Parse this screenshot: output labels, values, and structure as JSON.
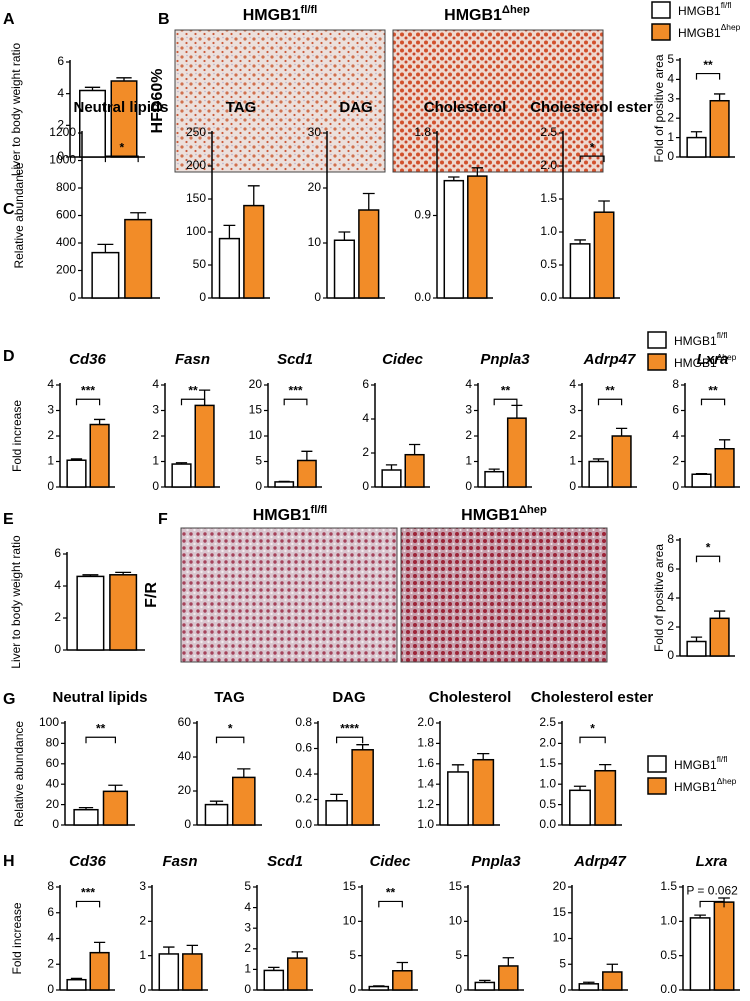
{
  "panel_labels": [
    "A",
    "B",
    "C",
    "D",
    "E",
    "F",
    "G",
    "H"
  ],
  "image_panels": [
    {
      "row_label": "HFD60%",
      "titles": [
        {
          "name": "HMGB1",
          "sup": "fl/fl"
        },
        {
          "name": "HMGB1",
          "sup": "Δhep"
        }
      ]
    },
    {
      "row_label": "F/R",
      "titles": [
        {
          "name": "HMGB1",
          "sup": "fl/fl"
        },
        {
          "name": "HMGB1",
          "sup": "Δhep"
        }
      ]
    }
  ],
  "legend": [
    {
      "name": "HMGB1",
      "sup": "fl/fl",
      "color": "#ffffff"
    },
    {
      "name": "HMGB1",
      "sup": "Δhep",
      "color": "#f28c28"
    }
  ],
  "chart_data": [
    {
      "type": "bar",
      "ylabel": "Liver to body weight ratio",
      "values": [
        4.2,
        4.8
      ],
      "errors": [
        0.2,
        0.2
      ],
      "ylim": [
        0,
        6
      ],
      "yticks": [
        0,
        2,
        4,
        6
      ]
    },
    {
      "type": "bar",
      "ylabel": "Fold of positive area",
      "values": [
        1.0,
        2.9
      ],
      "errors": [
        0.3,
        0.35
      ],
      "ylim": [
        0,
        5
      ],
      "yticks": [
        0,
        1,
        2,
        3,
        4,
        5
      ],
      "sig": "**"
    },
    {
      "type": "bar",
      "title": "Neutral lipids",
      "ylabel": "Relative abundance",
      "values": [
        330,
        570
      ],
      "errors": [
        60,
        50
      ],
      "ylim": [
        0,
        1200
      ],
      "yticks": [
        0,
        200,
        400,
        600,
        800,
        1000,
        1200
      ],
      "sig": "*"
    },
    {
      "type": "bar",
      "title": "TAG",
      "values": [
        90,
        140
      ],
      "errors": [
        20,
        30
      ],
      "ylim": [
        0,
        250
      ],
      "yticks": [
        0,
        50,
        100,
        150,
        200,
        250
      ]
    },
    {
      "type": "bar",
      "title": "DAG",
      "values": [
        10.5,
        16
      ],
      "errors": [
        1.5,
        3
      ],
      "ylim": [
        0,
        30
      ],
      "yticks": [
        0,
        10,
        20,
        30
      ]
    },
    {
      "type": "bar",
      "title": "Cholesterol",
      "values": [
        1.28,
        1.33
      ],
      "errors": [
        0.04,
        0.09
      ],
      "ylim": [
        0,
        1.8
      ],
      "yticks": [
        {
          "value": 0,
          "label": "0.0"
        },
        0.9,
        1.8
      ]
    },
    {
      "type": "bar",
      "title": "Cholesterol ester",
      "values": [
        0.82,
        1.3
      ],
      "errors": [
        0.06,
        0.17
      ],
      "ylim": [
        0,
        2.5
      ],
      "yticks": [
        {
          "value": 0,
          "label": "0.0"
        },
        0.5,
        {
          "value": 1,
          "label": "1.0"
        },
        1.5,
        {
          "value": 2,
          "label": "2.0"
        },
        2.5
      ],
      "sig": "*"
    },
    {
      "type": "bar",
      "title": "Cd36",
      "title_italic": true,
      "ylabel": "Fold increase",
      "values": [
        1.05,
        2.45
      ],
      "errors": [
        0.05,
        0.2
      ],
      "ylim": [
        0,
        4
      ],
      "yticks": [
        0,
        1,
        2,
        3,
        4
      ],
      "sig": "***"
    },
    {
      "type": "bar",
      "title": "Fasn",
      "title_italic": true,
      "values": [
        0.9,
        3.2
      ],
      "errors": [
        0.05,
        0.6
      ],
      "ylim": [
        0,
        4
      ],
      "yticks": [
        0,
        1,
        2,
        3,
        4
      ],
      "sig": "**"
    },
    {
      "type": "bar",
      "title": "Scd1",
      "title_italic": true,
      "values": [
        1.0,
        5.2
      ],
      "errors": [
        0.1,
        1.8
      ],
      "ylim": [
        0,
        20
      ],
      "yticks": [
        0,
        5,
        10,
        15,
        20
      ],
      "sig": "***"
    },
    {
      "type": "bar",
      "title": "Cidec",
      "title_italic": true,
      "values": [
        1.0,
        1.9
      ],
      "errors": [
        0.3,
        0.6
      ],
      "ylim": [
        0,
        6
      ],
      "yticks": [
        0,
        2,
        4,
        6
      ]
    },
    {
      "type": "bar",
      "title": "Pnpla3",
      "title_italic": true,
      "values": [
        0.6,
        2.7
      ],
      "errors": [
        0.1,
        0.5
      ],
      "ylim": [
        0,
        4
      ],
      "yticks": [
        0,
        1,
        2,
        3,
        4
      ],
      "sig": "**"
    },
    {
      "type": "bar",
      "title": "Adrp47",
      "title_italic": true,
      "values": [
        1.0,
        2.0
      ],
      "errors": [
        0.1,
        0.3
      ],
      "ylim": [
        0,
        4
      ],
      "yticks": [
        0,
        1,
        2,
        3,
        4
      ],
      "sig": "**"
    },
    {
      "type": "bar",
      "title": "Lxra",
      "title_italic": true,
      "values": [
        1.0,
        3.0
      ],
      "errors": [
        0.05,
        0.7
      ],
      "ylim": [
        0,
        8
      ],
      "yticks": [
        0,
        2,
        4,
        6,
        8
      ],
      "sig": "**"
    },
    {
      "type": "bar",
      "ylabel": "Liver to body weight ratio",
      "values": [
        4.6,
        4.7
      ],
      "errors": [
        0.1,
        0.15
      ],
      "ylim": [
        0,
        6
      ],
      "yticks": [
        0,
        2,
        4,
        6
      ]
    },
    {
      "type": "bar",
      "ylabel": "Fold of positive area",
      "values": [
        1.0,
        2.6
      ],
      "errors": [
        0.3,
        0.5
      ],
      "ylim": [
        0,
        8
      ],
      "yticks": [
        0,
        2,
        4,
        6,
        8
      ],
      "sig": "*"
    },
    {
      "type": "bar",
      "title": "Neutral lipids",
      "ylabel": "Relative abundance",
      "values": [
        15,
        33
      ],
      "errors": [
        2,
        6
      ],
      "ylim": [
        0,
        100
      ],
      "yticks": [
        0,
        20,
        40,
        60,
        80,
        100
      ],
      "sig": "**"
    },
    {
      "type": "bar",
      "title": "TAG",
      "values": [
        12,
        28
      ],
      "errors": [
        2,
        5
      ],
      "ylim": [
        0,
        60
      ],
      "yticks": [
        0,
        20,
        40,
        60
      ],
      "sig": "*"
    },
    {
      "type": "bar",
      "title": "DAG",
      "values": [
        0.19,
        0.59
      ],
      "errors": [
        0.05,
        0.04
      ],
      "ylim": [
        0,
        0.8
      ],
      "yticks": [
        {
          "value": 0,
          "label": "0.0"
        },
        0.2,
        0.4,
        0.6,
        0.8
      ],
      "sig": "****"
    },
    {
      "type": "bar",
      "title": "Cholesterol",
      "values": [
        1.52,
        1.64
      ],
      "errors": [
        0.07,
        0.06
      ],
      "ylim": [
        1,
        2
      ],
      "yticks": [
        {
          "value": 1,
          "label": "1.0"
        },
        1.2,
        1.4,
        1.6,
        1.8,
        {
          "value": 2,
          "label": "2.0"
        }
      ]
    },
    {
      "type": "bar",
      "title": "Cholesterol ester",
      "values": [
        0.85,
        1.33
      ],
      "errors": [
        0.1,
        0.15
      ],
      "ylim": [
        0,
        2.5
      ],
      "yticks": [
        {
          "value": 0,
          "label": "0.0"
        },
        0.5,
        {
          "value": 1,
          "label": "1.0"
        },
        1.5,
        {
          "value": 2,
          "label": "2.0"
        },
        2.5
      ],
      "sig": "*"
    },
    {
      "type": "bar",
      "title": "Cd36",
      "title_italic": true,
      "ylabel": "Fold increase",
      "values": [
        0.8,
        2.9
      ],
      "errors": [
        0.1,
        0.8
      ],
      "ylim": [
        0,
        8
      ],
      "yticks": [
        0,
        2,
        4,
        6,
        8
      ],
      "sig": "***"
    },
    {
      "type": "bar",
      "title": "Fasn",
      "title_italic": true,
      "values": [
        1.05,
        1.05
      ],
      "errors": [
        0.2,
        0.25
      ],
      "ylim": [
        0,
        3
      ],
      "yticks": [
        0,
        1,
        2,
        3
      ]
    },
    {
      "type": "bar",
      "title": "Scd1",
      "title_italic": true,
      "values": [
        0.95,
        1.55
      ],
      "errors": [
        0.15,
        0.3
      ],
      "ylim": [
        0,
        5
      ],
      "yticks": [
        0,
        1,
        2,
        3,
        4,
        5
      ]
    },
    {
      "type": "bar",
      "title": "Cidec",
      "title_italic": true,
      "values": [
        0.5,
        2.8
      ],
      "errors": [
        0.1,
        1.2
      ],
      "ylim": [
        0,
        15
      ],
      "yticks": [
        0,
        5,
        10,
        15
      ],
      "sig": "**"
    },
    {
      "type": "bar",
      "title": "Pnpla3",
      "title_italic": true,
      "values": [
        1.1,
        3.5
      ],
      "errors": [
        0.3,
        1.2
      ],
      "ylim": [
        0,
        15
      ],
      "yticks": [
        0,
        5,
        10,
        15
      ]
    },
    {
      "type": "bar",
      "title": "Adrp47",
      "title_italic": true,
      "values": [
        1.2,
        3.5
      ],
      "errors": [
        0.3,
        1.5
      ],
      "ylim": [
        0,
        20
      ],
      "yticks": [
        0,
        5,
        10,
        15,
        20
      ]
    },
    {
      "type": "bar",
      "title": "Lxra",
      "title_italic": true,
      "values": [
        1.05,
        1.28
      ],
      "errors": [
        0.04,
        0.06
      ],
      "ylim": [
        0,
        1.5
      ],
      "yticks": [
        {
          "value": 0,
          "label": "0.0"
        },
        0.5,
        {
          "value": 1,
          "label": "1.0"
        },
        1.5
      ],
      "annotation": "P = 0.062"
    }
  ]
}
